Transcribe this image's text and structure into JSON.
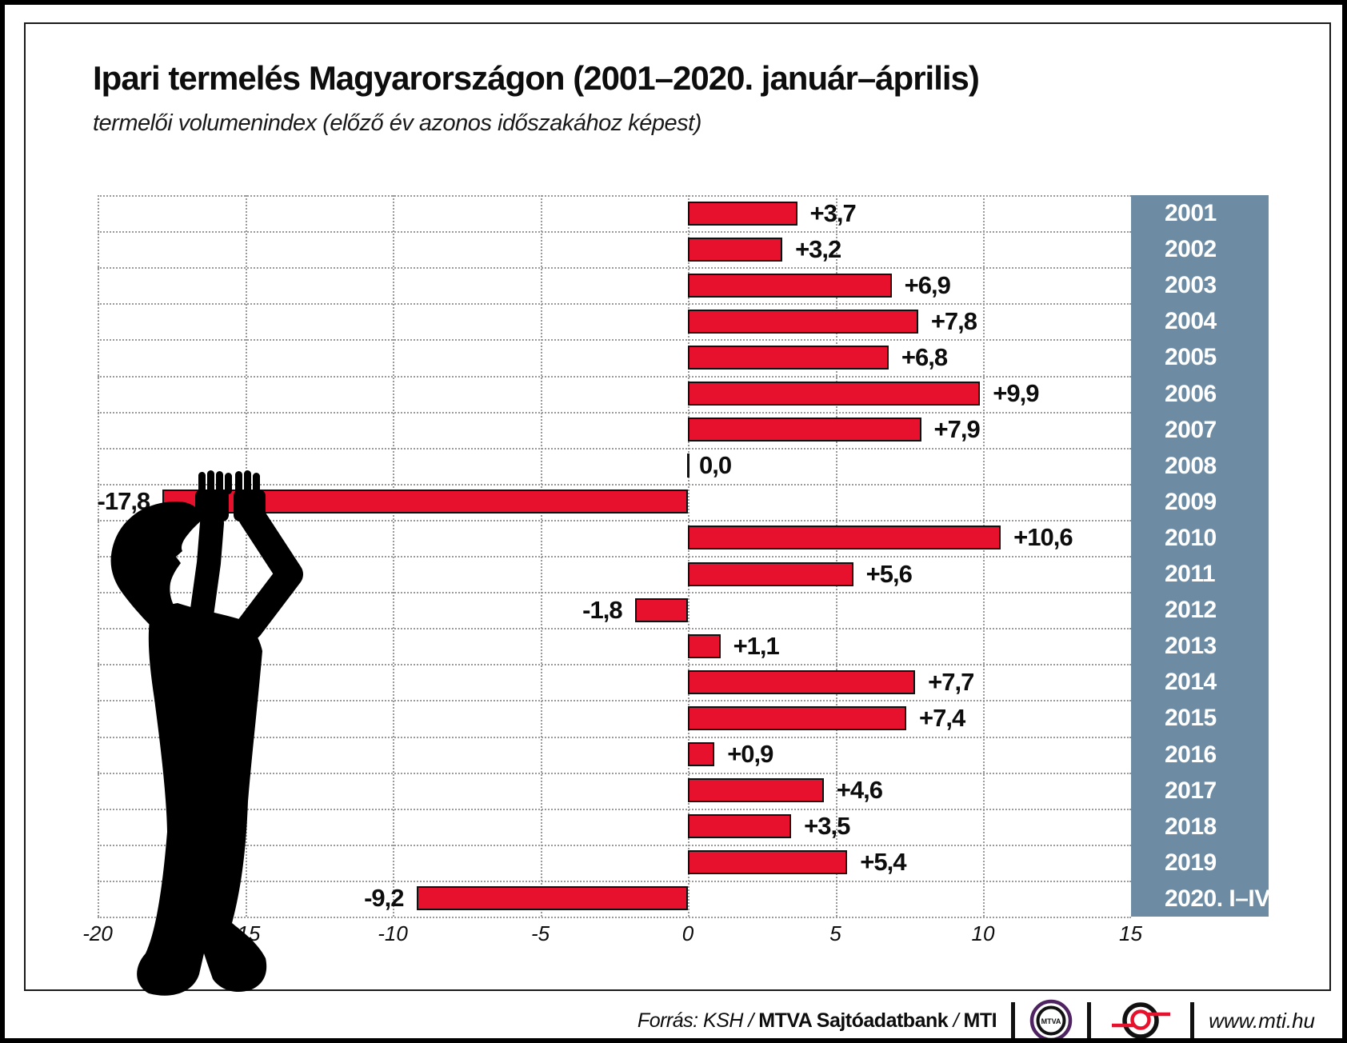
{
  "chart_data": {
    "type": "bar",
    "orientation": "horizontal",
    "title": "Ipari termelés Magyarországon (2001–2020. január–április)",
    "subtitle": "termelői volumenindex (előző év azonos időszakához képest)",
    "categories": [
      "2001",
      "2002",
      "2003",
      "2004",
      "2005",
      "2006",
      "2007",
      "2008",
      "2009",
      "2010",
      "2011",
      "2012",
      "2013",
      "2014",
      "2015",
      "2016",
      "2017",
      "2018",
      "2019",
      "2020. I–IV."
    ],
    "values": [
      3.7,
      3.2,
      6.9,
      7.8,
      6.8,
      9.9,
      7.9,
      0.0,
      -17.8,
      10.6,
      5.6,
      -1.8,
      1.1,
      7.7,
      7.4,
      0.9,
      4.6,
      3.5,
      5.4,
      -9.2
    ],
    "value_labels": [
      "+3,7",
      "+3,2",
      "+6,9",
      "+7,8",
      "+6,8",
      "+9,9",
      "+7,9",
      "0,0",
      "-17,8",
      "+10,6",
      "+5,6",
      "-1,8",
      "+1,1",
      "+7,7",
      "+7,4",
      "+0,9",
      "+4,6",
      "+3,5",
      "+5,4",
      "-9,2"
    ],
    "x_ticks": [
      -20,
      -15,
      -10,
      -5,
      0,
      5,
      10,
      15
    ],
    "x_tick_labels": [
      "-20",
      "-15",
      "-10",
      "-5",
      "0",
      "5",
      "10",
      "15"
    ],
    "xlim": [
      -20,
      15
    ],
    "grid": "dotted",
    "legend": "none",
    "bar_color": "#e8112d",
    "bar_border_color": "#111111",
    "year_panel_color": "#6d8ca3",
    "year_text_color": "#ffffff"
  },
  "footer": {
    "source_prefix": "Forrás: KSH /",
    "source_org": "MTVA Sajtóadatbank",
    "source_divider": "/",
    "source_agency": "MTI",
    "mtva_logo_text": "MTVA",
    "website": "www.mti.hu"
  }
}
